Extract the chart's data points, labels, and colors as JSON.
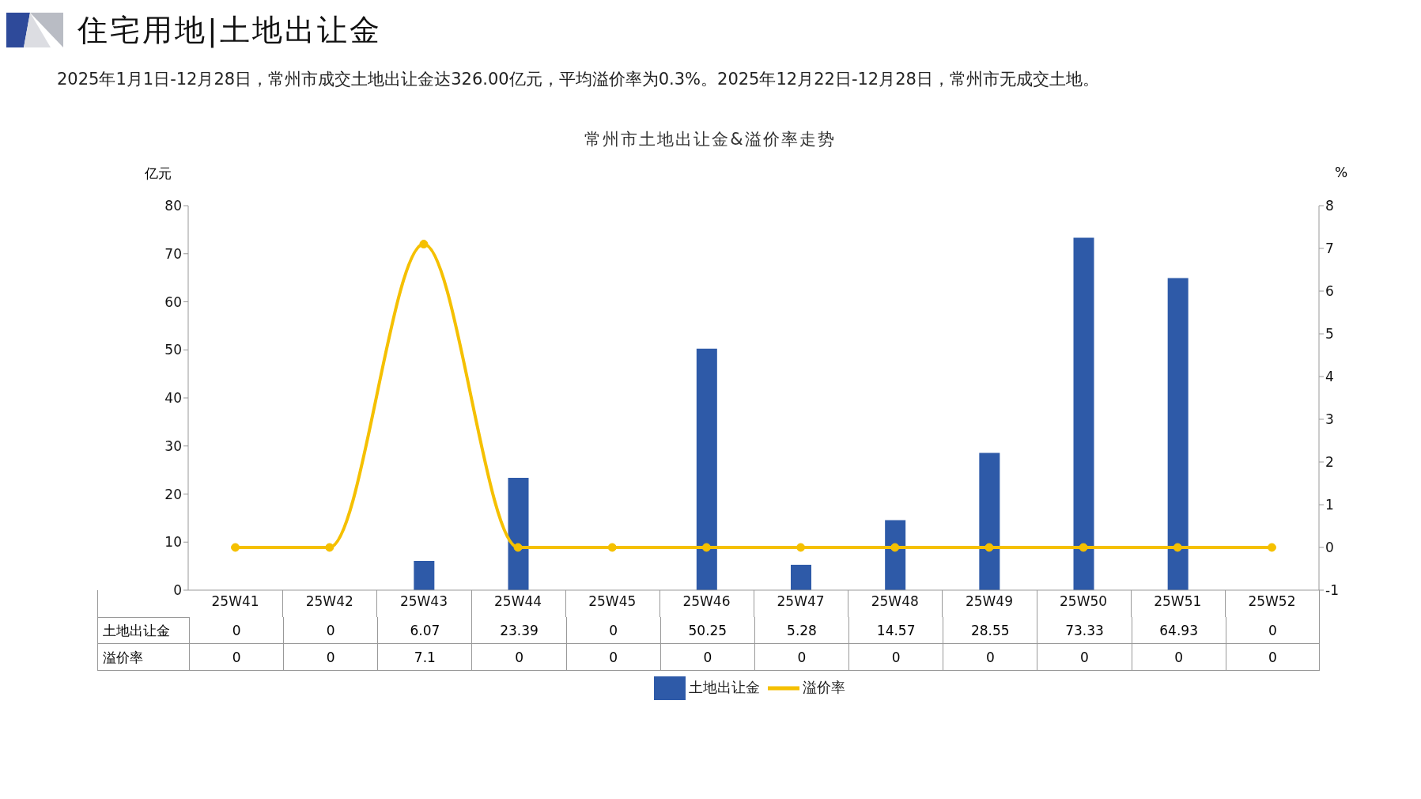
{
  "chart_data": {
    "type": "bar",
    "title": "住宅用地|土地出让金",
    "subtitle": "2025年1月1日-12月28日，常州市成交土地出让金达326.00亿元，平均溢价率为0.3%。2025年12月22日-12月28日，常州市无成交土地。",
    "annotations": [
      "常州市土地出让金&溢价率走势"
    ],
    "ylabel": "亿元",
    "y2label": "%",
    "categories": [
      "25W41",
      "25W42",
      "25W43",
      "25W44",
      "25W45",
      "25W46",
      "25W47",
      "25W48",
      "25W49",
      "25W50",
      "25W51",
      "25W52"
    ],
    "series": [
      {
        "name": "土地出让金",
        "color": "#2e5aa8",
        "values": [
          0,
          0,
          6.07,
          23.39,
          0,
          50.25,
          5.28,
          14.57,
          28.55,
          73.33,
          64.93,
          0
        ]
      },
      {
        "name": "溢价率",
        "type": "line",
        "axis": "y2",
        "color": "#f5c000",
        "values": [
          0,
          0,
          7.1,
          0,
          0,
          0,
          0,
          0,
          0,
          0,
          0,
          0
        ]
      }
    ],
    "ylim": [
      0,
      80
    ],
    "yticks": [
      0,
      10,
      20,
      30,
      40,
      50,
      60,
      70,
      80
    ],
    "y2lim": [
      -1,
      8
    ],
    "y2ticks": [
      -1,
      0,
      1,
      2,
      3,
      4,
      5,
      6,
      7,
      8
    ],
    "data_labels": true,
    "legend": "bottom",
    "marker": "circle",
    "line_style": "solid"
  }
}
